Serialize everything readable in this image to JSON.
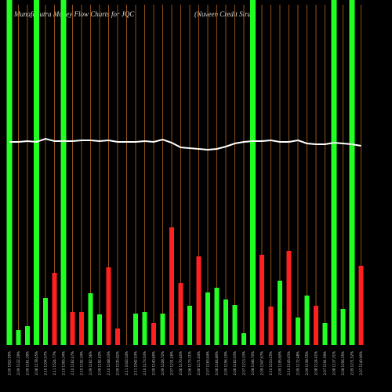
{
  "chart_data": {
    "type": "bar",
    "title": "MunafaSutra Money Flow Charts for JQC",
    "subtitle": "(Nuveen Credit Strat",
    "categories": [
      "2.00 1922.95%",
      "2.09 1122.29%",
      "2.09 1161.39%",
      "2.08 1178.45%",
      "2.10 1334.57%",
      "2.11 1524.77%",
      "2.10 1305.34%",
      "2.10 1162.47%",
      "2.10 1192.34%",
      "2.09 1162.56%",
      "2.09 1192.42%",
      "2.10 1248.03%",
      "2.09 1235.92%",
      "2.11 1043.54%",
      "2.11 1942.53%",
      "2.10 1173.53%",
      "2.09 1140.60%",
      "2.09 1228.72%",
      "2.07 1231.26%",
      "2.06 1170.40%",
      "2.06 1173.31%",
      "2.06 1171.64%",
      "2.07 1163.64%",
      "2.06 1164.80%",
      "2.05 1156.10%",
      "2.06 1162.03%",
      "2.07 1213.33%",
      "2.08 1346.70%",
      "2.09 1347.67%",
      "2.10 1210.25%",
      "2.09 1195.60%",
      "2.10 1145.63%",
      "2.09 1172.48%",
      "2.09 1138.55%",
      "2.08 1124.41%",
      "2.07 1191.59%",
      "2.08 1137.31%",
      "2.08 1256.35%",
      "2.09 1271.52%",
      "2.07 1140.90%"
    ],
    "values": [
      440,
      19,
      24,
      440,
      60,
      92,
      440,
      42,
      42,
      66,
      39,
      99,
      21,
      0,
      40,
      42,
      28,
      40,
      150,
      79,
      50,
      113,
      67,
      73,
      58,
      51,
      15,
      440,
      115,
      49,
      82,
      120,
      35,
      63,
      50,
      28,
      440,
      46,
      440,
      101
    ],
    "colors": [
      "#22ff22",
      "#22ff22",
      "#22ff22",
      "#22ff22",
      "#22ff22",
      "#ff2020",
      "#22ff22",
      "#ff2020",
      "#ff2020",
      "#22ff22",
      "#22ff22",
      "#ff2020",
      "#ff2020",
      "#22ff22",
      "#22ff22",
      "#22ff22",
      "#ff2020",
      "#22ff22",
      "#ff2020",
      "#ff2020",
      "#22ff22",
      "#ff2020",
      "#22ff22",
      "#22ff22",
      "#22ff22",
      "#22ff22",
      "#22ff22",
      "#22ff22",
      "#ff2020",
      "#ff2020",
      "#22ff22",
      "#ff2020",
      "#22ff22",
      "#22ff22",
      "#ff2020",
      "#22ff22",
      "#22ff22",
      "#22ff22",
      "#22ff22",
      "#ff2020"
    ],
    "line": {
      "color": "#ffffff",
      "values": [
        259,
        259,
        260,
        259,
        263,
        260,
        260,
        260,
        261,
        261,
        260,
        261,
        259,
        259,
        259,
        260,
        259,
        262,
        258,
        252,
        251,
        250,
        249,
        250,
        253,
        257,
        259,
        260,
        260,
        261,
        259,
        259,
        261,
        257,
        256,
        256,
        258,
        257,
        256,
        254
      ]
    },
    "grid_color": "#b5651d",
    "ylim": [
      0,
      440
    ]
  }
}
